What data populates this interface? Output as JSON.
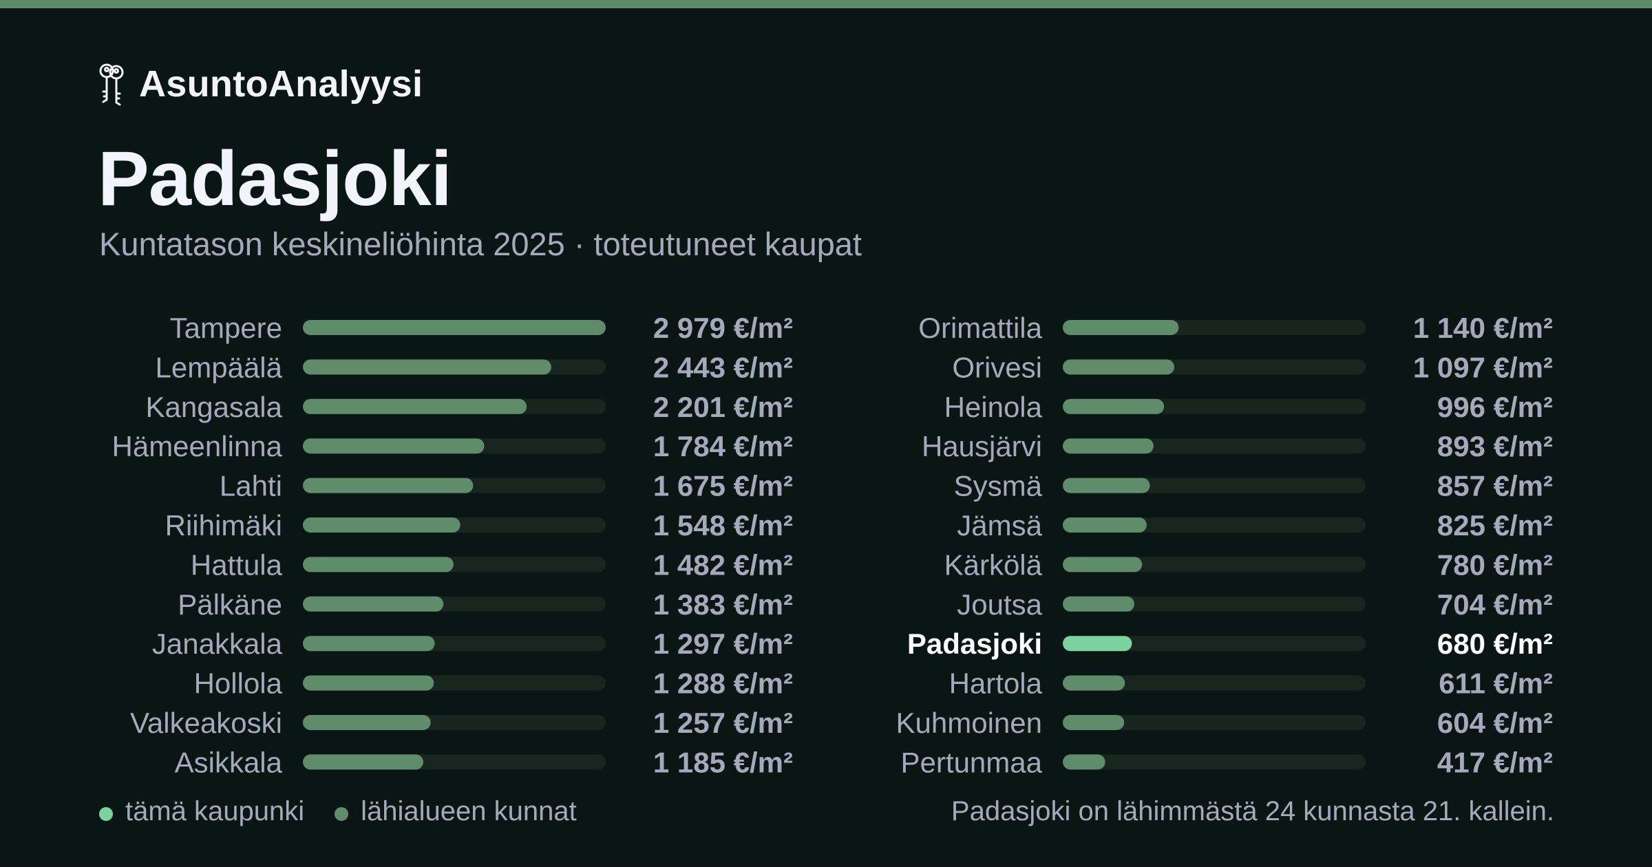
{
  "brand": {
    "name": "AsuntoAnalyysi",
    "icon": "keys-icon"
  },
  "title": "Padasjoki",
  "subtitle": "Kuntatason keskineliöhinta 2025 · toteutuneet kaupat",
  "colors": {
    "background": "#0a1613",
    "accent_strip": "#5b8a66",
    "bar_default": "#5f8d6b",
    "bar_highlight": "#7dd3a0",
    "track": "#18261f",
    "text_default": "#a3abbb",
    "text_highlight": "#ffffff"
  },
  "chart_data": {
    "type": "bar",
    "orientation": "horizontal",
    "unit": "€/m²",
    "xlim": [
      0,
      2979
    ],
    "highlight": "Padasjoki",
    "categories": [
      "Tampere",
      "Lempäälä",
      "Kangasala",
      "Hämeenlinna",
      "Lahti",
      "Riihimäki",
      "Hattula",
      "Pälkäne",
      "Janakkala",
      "Hollola",
      "Valkeakoski",
      "Asikkala",
      "Orimattila",
      "Orivesi",
      "Heinola",
      "Hausjärvi",
      "Sysmä",
      "Jämsä",
      "Kärkölä",
      "Joutsa",
      "Padasjoki",
      "Hartola",
      "Kuhmoinen",
      "Pertunmaa"
    ],
    "values": [
      2979,
      2443,
      2201,
      1784,
      1675,
      1548,
      1482,
      1383,
      1297,
      1288,
      1257,
      1185,
      1140,
      1097,
      996,
      893,
      857,
      825,
      780,
      704,
      680,
      611,
      604,
      417
    ],
    "value_labels": [
      "2 979 €/m²",
      "2 443 €/m²",
      "2 201 €/m²",
      "1 784 €/m²",
      "1 675 €/m²",
      "1 548 €/m²",
      "1 482 €/m²",
      "1 383 €/m²",
      "1 297 €/m²",
      "1 288 €/m²",
      "1 257 €/m²",
      "1 185 €/m²",
      "1 140 €/m²",
      "1 097 €/m²",
      "996 €/m²",
      "893 €/m²",
      "857 €/m²",
      "825 €/m²",
      "780 €/m²",
      "704 €/m²",
      "680 €/m²",
      "611 €/m²",
      "604 €/m²",
      "417 €/m²"
    ]
  },
  "legend": [
    {
      "label": "tämä kaupunki",
      "color": "#7dd3a0"
    },
    {
      "label": "lähialueen kunnat",
      "color": "#5f8d6b"
    }
  ],
  "rank_note": "Padasjoki on lähimmästä 24 kunnasta 21. kallein."
}
